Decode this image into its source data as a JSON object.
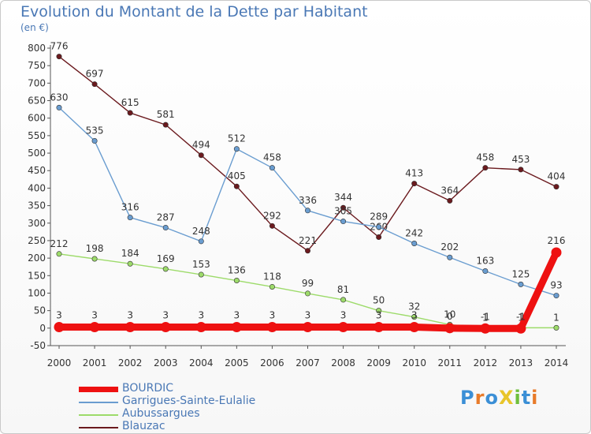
{
  "page": {
    "title": "Evolution du Montant de la Dette par Habitant",
    "subtitle": "(en €)",
    "logo": "ProXiti"
  },
  "colors": {
    "title": "#4a78b5",
    "axis": "#555555",
    "grid": "#e6e6e6"
  },
  "chart_data": {
    "type": "line",
    "title": "Evolution du Montant de la Dette par Habitant",
    "subtitle": "(en €)",
    "x": [
      "2000",
      "2001",
      "2002",
      "2003",
      "2004",
      "2005",
      "2006",
      "2007",
      "2008",
      "2009",
      "2010",
      "2011",
      "2012",
      "2013",
      "2014"
    ],
    "ylim": [
      -50,
      800
    ],
    "yticks": [
      -50,
      0,
      50,
      100,
      150,
      200,
      250,
      300,
      350,
      400,
      450,
      500,
      550,
      600,
      650,
      700,
      750,
      800
    ],
    "grid": false,
    "legend_position": "bottom-left",
    "series": [
      {
        "name": "Blauzac",
        "color": "#6b1a1e",
        "values": [
          776,
          697,
          615,
          581,
          494,
          405,
          292,
          221,
          344,
          260,
          413,
          364,
          458,
          453,
          404
        ],
        "labels": [
          "776",
          "697",
          "615",
          "581",
          "494",
          "405",
          "292",
          "221",
          "344",
          "260",
          "413",
          "364",
          "458",
          "453",
          "404"
        ]
      },
      {
        "name": "Garrigues-Sainte-Eulalie",
        "color": "#6a9dd0",
        "values": [
          630,
          535,
          316,
          287,
          248,
          512,
          458,
          336,
          305,
          289,
          242,
          202,
          163,
          125,
          93
        ],
        "labels": [
          "630",
          "535",
          "316",
          "287",
          "248",
          "512",
          "458",
          "336",
          "305",
          "289",
          "242",
          "202",
          "163",
          "125",
          "93"
        ]
      },
      {
        "name": "Aubussargues",
        "color": "#9ddb6a",
        "values": [
          212,
          198,
          184,
          169,
          153,
          136,
          118,
          99,
          81,
          50,
          32,
          10,
          1,
          1,
          1
        ],
        "labels": [
          "212",
          "198",
          "184",
          "169",
          "153",
          "136",
          "118",
          "99",
          "81",
          "50",
          "32",
          "10",
          "1",
          "1",
          "1"
        ]
      },
      {
        "name": "BOURDIC",
        "color": "#ee1111",
        "values": [
          3,
          3,
          3,
          3,
          3,
          3,
          3,
          3,
          3,
          3,
          3,
          0,
          -1,
          -1,
          216
        ],
        "labels": [
          "3",
          "3",
          "3",
          "3",
          "3",
          "3",
          "3",
          "3",
          "3",
          "3",
          "3",
          "0",
          "-1",
          "-1",
          "216"
        ]
      }
    ]
  },
  "legend": [
    {
      "name": "BOURDIC",
      "color": "#ee1111",
      "thick": true
    },
    {
      "name": "Garrigues-Sainte-Eulalie",
      "color": "#6a9dd0",
      "thick": false
    },
    {
      "name": "Aubussargues",
      "color": "#9ddb6a",
      "thick": false
    },
    {
      "name": "Blauzac",
      "color": "#6b1a1e",
      "thick": false
    }
  ]
}
